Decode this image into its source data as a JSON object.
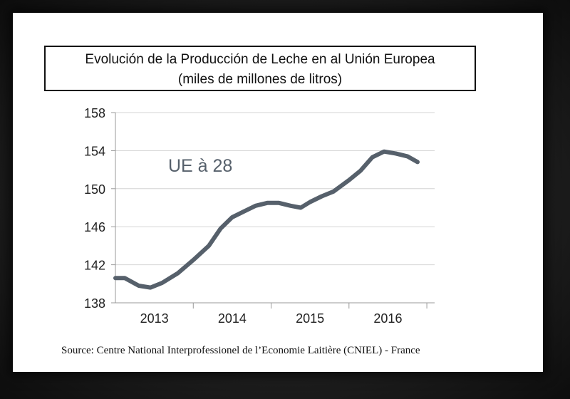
{
  "chart_data": {
    "type": "line",
    "title_line1": "Evolución de la Producción de Leche en al Unión Europea",
    "title_line2": "(miles de millones de litros)",
    "annotation": "UE à 28",
    "ylim": [
      138,
      158
    ],
    "yticks": [
      138,
      142,
      146,
      150,
      154,
      158
    ],
    "xlim": [
      2012.5,
      2016.6
    ],
    "xticks": [
      {
        "label": "2013",
        "pos": 2013.0
      },
      {
        "label": "2014",
        "pos": 2014.0
      },
      {
        "label": "2015",
        "pos": 2015.0
      },
      {
        "label": "2016",
        "pos": 2016.0
      }
    ],
    "series": [
      {
        "name": "UE à 28",
        "color": "#56606b",
        "x": [
          2012.5,
          2012.62,
          2012.8,
          2012.95,
          2013.1,
          2013.3,
          2013.5,
          2013.7,
          2013.85,
          2014.0,
          2014.15,
          2014.3,
          2014.45,
          2014.6,
          2014.75,
          2014.88,
          2015.0,
          2015.15,
          2015.3,
          2015.5,
          2015.65,
          2015.8,
          2015.95,
          2016.1,
          2016.25,
          2016.38
        ],
        "values": [
          140.6,
          140.6,
          139.8,
          139.6,
          140.1,
          141.1,
          142.5,
          144.0,
          145.8,
          147.0,
          147.6,
          148.2,
          148.5,
          148.5,
          148.2,
          148.0,
          148.6,
          149.2,
          149.7,
          150.9,
          151.9,
          153.3,
          153.9,
          153.7,
          153.4,
          152.8
        ]
      }
    ]
  },
  "source": "Source: Centre National Interprofessionel de l’Economie Laitière (CNIEL) - France"
}
